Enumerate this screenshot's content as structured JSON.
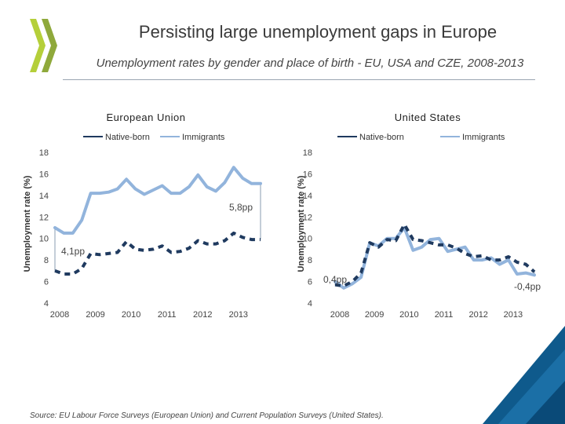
{
  "header": {
    "title": "Persisting large unemployment gaps in Europe",
    "subtitle": "Unemployment rates by gender and place of birth - EU, USA and CZE, 2008-2013"
  },
  "source": "Source: EU Labour Force Surveys (European Union) and Current Population Surveys (United States).",
  "colors": {
    "native": "#1f3a5f",
    "immigrant": "#92b4dc",
    "logo_green": "#b5cf3a",
    "corner": "#0f5a8c"
  },
  "chart_data": [
    {
      "type": "line",
      "title": "European Union",
      "ylabel": "Unemployment rate (%)",
      "ylim": [
        4,
        18
      ],
      "yticks": [
        "4",
        "6",
        "8",
        "10",
        "12",
        "14",
        "16",
        "18"
      ],
      "xticks": [
        "2008",
        "2009",
        "2010",
        "2011",
        "2012",
        "2013"
      ],
      "legend_position": "top",
      "x": [
        "2008Q1",
        "2008Q2",
        "2008Q3",
        "2008Q4",
        "2009Q1",
        "2009Q2",
        "2009Q3",
        "2009Q4",
        "2010Q1",
        "2010Q2",
        "2010Q3",
        "2010Q4",
        "2011Q1",
        "2011Q2",
        "2011Q3",
        "2011Q4",
        "2012Q1",
        "2012Q2",
        "2012Q3",
        "2012Q4",
        "2013Q1",
        "2013Q2",
        "2013Q3",
        "2013Q4"
      ],
      "series": [
        {
          "name": "Native-born",
          "style": "dashed",
          "color": "#1f3a5f",
          "values": [
            7.0,
            6.7,
            6.7,
            7.2,
            8.6,
            8.5,
            8.6,
            8.7,
            9.7,
            9.0,
            8.9,
            9.0,
            9.3,
            8.7,
            8.8,
            9.1,
            9.8,
            9.5,
            9.5,
            9.8,
            10.5,
            10.1,
            9.9,
            9.9
          ]
        },
        {
          "name": "Immigrants",
          "style": "solid",
          "color": "#92b4dc",
          "values": [
            11.0,
            10.5,
            10.5,
            11.7,
            14.2,
            14.2,
            14.3,
            14.6,
            15.5,
            14.6,
            14.1,
            14.5,
            14.9,
            14.2,
            14.2,
            14.8,
            15.9,
            14.8,
            14.4,
            15.2,
            16.6,
            15.6,
            15.1,
            15.1
          ]
        }
      ],
      "annotations": [
        "5,8pp",
        "4,1pp"
      ]
    },
    {
      "type": "line",
      "title": "United States",
      "ylabel": "Unemployment rate (%)",
      "ylim": [
        4,
        18
      ],
      "yticks": [
        "4",
        "6",
        "8",
        "10",
        "12",
        "14",
        "16",
        "18"
      ],
      "xticks": [
        "2008",
        "2009",
        "2010",
        "2011",
        "2012",
        "2013"
      ],
      "legend_position": "top",
      "x": [
        "2008Q1",
        "2008Q2",
        "2008Q3",
        "2008Q4",
        "2009Q1",
        "2009Q2",
        "2009Q3",
        "2009Q4",
        "2010Q1",
        "2010Q2",
        "2010Q3",
        "2010Q4",
        "2011Q1",
        "2011Q2",
        "2011Q3",
        "2011Q4",
        "2012Q1",
        "2012Q2",
        "2012Q3",
        "2012Q4",
        "2013Q1",
        "2013Q2",
        "2013Q3",
        "2013Q4"
      ],
      "series": [
        {
          "name": "Native-born",
          "style": "dashed",
          "color": "#1f3a5f",
          "values": [
            5.7,
            5.6,
            6.0,
            6.8,
            9.6,
            9.2,
            9.9,
            9.8,
            11.3,
            9.9,
            9.8,
            9.6,
            9.4,
            9.4,
            9.1,
            8.6,
            8.3,
            8.4,
            8.0,
            8.0,
            8.3,
            7.8,
            7.6,
            6.9
          ]
        },
        {
          "name": "Immigrants",
          "style": "solid",
          "color": "#92b4dc",
          "values": [
            6.0,
            5.4,
            5.8,
            6.4,
            9.6,
            9.3,
            10.0,
            10.0,
            11.0,
            8.9,
            9.2,
            9.9,
            10.0,
            8.8,
            9.0,
            9.2,
            8.0,
            8.0,
            8.2,
            7.6,
            8.0,
            6.7,
            6.8,
            6.6
          ]
        }
      ],
      "annotations": [
        "0,4pp",
        "-0,4pp"
      ]
    }
  ]
}
